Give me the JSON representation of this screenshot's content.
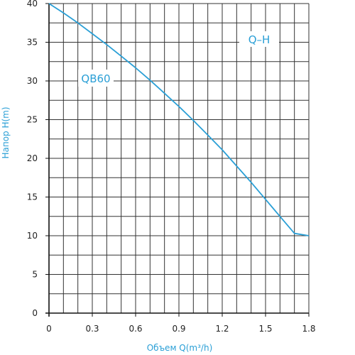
{
  "chart_data": {
    "type": "line",
    "ylabel": "Напор H(m)",
    "xlabel": "Объем Q(m³/h)",
    "xlim": [
      0,
      1.8
    ],
    "ylim": [
      0,
      40
    ],
    "x_ticks": [
      "0",
      "0.3",
      "0.6",
      "0.9",
      "1.2",
      "1.5",
      "1.8"
    ],
    "y_ticks": [
      "0",
      "5",
      "10",
      "15",
      "20",
      "25",
      "30",
      "35",
      "40"
    ],
    "grid": true,
    "series": [
      {
        "name": "QB60",
        "x": [
          0,
          0.1,
          0.2,
          0.3,
          0.4,
          0.5,
          0.6,
          0.7,
          0.8,
          0.9,
          1.0,
          1.1,
          1.2,
          1.3,
          1.4,
          1.5,
          1.6,
          1.7,
          1.8
        ],
        "y": [
          40,
          38.8,
          37.5,
          36.1,
          34.7,
          33.2,
          31.7,
          30.1,
          28.4,
          26.7,
          24.9,
          23.0,
          21.1,
          19.0,
          16.9,
          14.7,
          12.5,
          10.3,
          10.0
        ]
      }
    ],
    "curve_label": "Q–H"
  },
  "colors": {
    "line": "#2a9fd6",
    "grid": "#333333",
    "label": "#2a9fd6"
  }
}
